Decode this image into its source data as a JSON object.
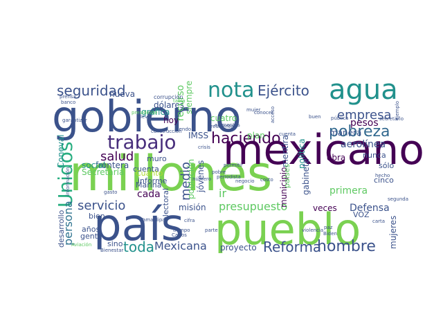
{
  "palette": {
    "dark_purple": "#440154",
    "indigo": "#472d7b",
    "navy": "#3b528b",
    "blue": "#2c728e",
    "teal": "#21918c",
    "green_teal": "#28ae80",
    "green": "#5ec962",
    "lime": "#addc30",
    "yellow": "#fde725",
    "gray": "#9a9a9a"
  },
  "words": [
    {
      "text": "gobierno",
      "color": "#3b528b"
    },
    {
      "text": "millones",
      "color": "#7ad151"
    },
    {
      "text": "mexicano",
      "color": "#440154"
    },
    {
      "text": "país",
      "color": "#3b528b"
    },
    {
      "text": "pueblo",
      "color": "#7ad151"
    },
    {
      "text": "agua",
      "color": "#21918c"
    },
    {
      "text": "nota",
      "color": "#21918c"
    },
    {
      "text": "trabajo",
      "color": "#472d7b"
    },
    {
      "text": "Ejército",
      "color": "#3b528b"
    },
    {
      "text": "seguridad",
      "color": "#3b528b"
    },
    {
      "text": "pobreza",
      "color": "#31688e"
    },
    {
      "text": "empresa",
      "color": "#3b528b"
    },
    {
      "text": "Unidos",
      "color": "#28ae80"
    },
    {
      "text": "haciendo",
      "color": "#440154"
    },
    {
      "text": "salud",
      "color": "#440154"
    },
    {
      "text": "servicio",
      "color": "#3b528b"
    },
    {
      "text": "presupuesto",
      "color": "#5ec962"
    },
    {
      "text": "Reforma",
      "color": "#3b528b"
    },
    {
      "text": "hombre",
      "color": "#3b528b"
    },
    {
      "text": "toda",
      "color": "#21918c"
    },
    {
      "text": "Mexicana",
      "color": "#3b528b"
    },
    {
      "text": "medio",
      "color": "#3b528b"
    },
    {
      "text": "persona",
      "color": "#2c728e"
    },
    {
      "text": "aerolínea",
      "color": "#3b528b"
    },
    {
      "text": "pesos",
      "color": "#440154"
    },
    {
      "text": "Defensa",
      "color": "#3b528b"
    },
    {
      "text": "mujeres",
      "color": "#3b528b"
    },
    {
      "text": "primera",
      "color": "#5ec962"
    },
    {
      "text": "ir",
      "color": "#5ec962"
    },
    {
      "text": "cada",
      "color": "#440154"
    },
    {
      "text": "misión",
      "color": "#3b528b"
    },
    {
      "text": "proyecto",
      "color": "#3b528b"
    },
    {
      "text": "obra",
      "color": "#440154"
    },
    {
      "text": "veces",
      "color": "#440154"
    },
    {
      "text": "dólares",
      "color": "#3b528b"
    },
    {
      "text": "gráfica",
      "color": "#21918c"
    },
    {
      "text": "nueva",
      "color": "#3b528b"
    },
    {
      "text": "recurso",
      "color": "#5ec962"
    },
    {
      "text": "siempre",
      "color": "#5ec962"
    },
    {
      "text": "hoy",
      "color": "#440154"
    },
    {
      "text": "cuatro",
      "color": "#5ec962"
    },
    {
      "text": "IMSS",
      "color": "#3b528b"
    },
    {
      "text": "frontera",
      "color": "#3b528b"
    },
    {
      "text": "social",
      "color": "#21918c"
    },
    {
      "text": "Secretaría",
      "color": "#5ec962"
    },
    {
      "text": "cuenta",
      "color": "#3b528b"
    },
    {
      "text": "muro",
      "color": "#3b528b"
    },
    {
      "text": "Cuánto",
      "color": "#addc30"
    },
    {
      "text": "informe",
      "color": "#3b528b"
    },
    {
      "text": "Marina",
      "color": "#3b528b"
    },
    {
      "text": "población",
      "color": "#5ec962"
    },
    {
      "text": "jóvenes",
      "color": "#3b528b"
    },
    {
      "text": "electoral",
      "color": "#3b528b"
    },
    {
      "text": "plan",
      "color": "#5ec962"
    },
    {
      "text": "mentira",
      "color": "#3b528b"
    },
    {
      "text": "municipio",
      "color": "#440154"
    },
    {
      "text": "manera",
      "color": "#3b528b"
    },
    {
      "text": "nunca",
      "color": "#3b528b"
    },
    {
      "text": "cinco",
      "color": "#3b528b"
    },
    {
      "text": "sólo",
      "color": "#3b528b"
    },
    {
      "text": "VOZ",
      "color": "#3b528b"
    },
    {
      "text": "política",
      "color": "#21918c"
    },
    {
      "text": "gabinete",
      "color": "#3b528b"
    },
    {
      "text": "países",
      "color": "#5ec962"
    },
    {
      "text": "desarrollo",
      "color": "#3b528b"
    },
    {
      "text": "bien",
      "color": "#3b528b"
    },
    {
      "text": "años",
      "color": "#3b528b"
    },
    {
      "text": "gente",
      "color": "#3b528b"
    },
    {
      "text": "sino",
      "color": "#3b528b"
    },
    {
      "text": "Coneval",
      "color": "#21918c"
    },
    {
      "text": "corrupción",
      "color": "#3b528b"
    },
    {
      "text": "llevar",
      "color": "#3b528b"
    },
    {
      "text": "tabla",
      "color": "#5ec962"
    },
    {
      "text": "construcción",
      "color": "#3b528b"
    },
    {
      "text": "siendo",
      "color": "#3b528b"
    },
    {
      "text": "buen",
      "color": "#3b528b"
    },
    {
      "text": "pública",
      "color": "#3b528b"
    },
    {
      "text": "secretario",
      "color": "#3b528b"
    },
    {
      "text": "ejemplo",
      "color": "#3b528b"
    },
    {
      "text": "mujer",
      "color": "#3b528b"
    },
    {
      "text": "acceso",
      "color": "#3b528b"
    },
    {
      "text": "cuenta",
      "color": "#3b528b"
    },
    {
      "text": "garantizar",
      "color": "#3b528b"
    },
    {
      "text": "conocer",
      "color": "#3b528b"
    },
    {
      "text": "crisis",
      "color": "#3b528b"
    },
    {
      "text": "pobre",
      "color": "#3b528b"
    },
    {
      "text": "periodista",
      "color": "#3b528b"
    },
    {
      "text": "permitir",
      "color": "#3b528b"
    },
    {
      "text": "negocio",
      "color": "#3b528b"
    },
    {
      "text": "Tamaulipas",
      "color": "#3b528b"
    },
    {
      "text": "tiempo",
      "color": "#3b528b"
    },
    {
      "text": "Carlos",
      "color": "#3b528b"
    },
    {
      "text": "cifra",
      "color": "#3b528b"
    },
    {
      "text": "parte",
      "color": "#3b528b"
    },
    {
      "text": "violencia",
      "color": "#3b528b"
    },
    {
      "text": "paz",
      "color": "#3b528b"
    },
    {
      "text": "Biden",
      "color": "#3b528b"
    },
    {
      "text": "carta",
      "color": "#3b528b"
    },
    {
      "text": "Bienestar",
      "color": "#3b528b"
    },
    {
      "text": "Aviación",
      "color": "#5ec962"
    },
    {
      "text": "costo",
      "color": "#3b528b"
    },
    {
      "text": "hecho",
      "color": "#3b528b"
    },
    {
      "text": "segunda",
      "color": "#3b528b"
    },
    {
      "text": "elementos",
      "color": "#3b528b"
    },
    {
      "text": "presidente",
      "color": "#3b528b"
    },
    {
      "text": "número",
      "color": "#3b528b"
    },
    {
      "text": "información",
      "color": "#3b528b"
    },
    {
      "text": "gasto",
      "color": "#3b528b"
    },
    {
      "text": "presidente",
      "color": "#5ec962"
    },
    {
      "text": "prensa",
      "color": "#3b528b"
    },
    {
      "text": "banco",
      "color": "#3b528b"
    }
  ]
}
